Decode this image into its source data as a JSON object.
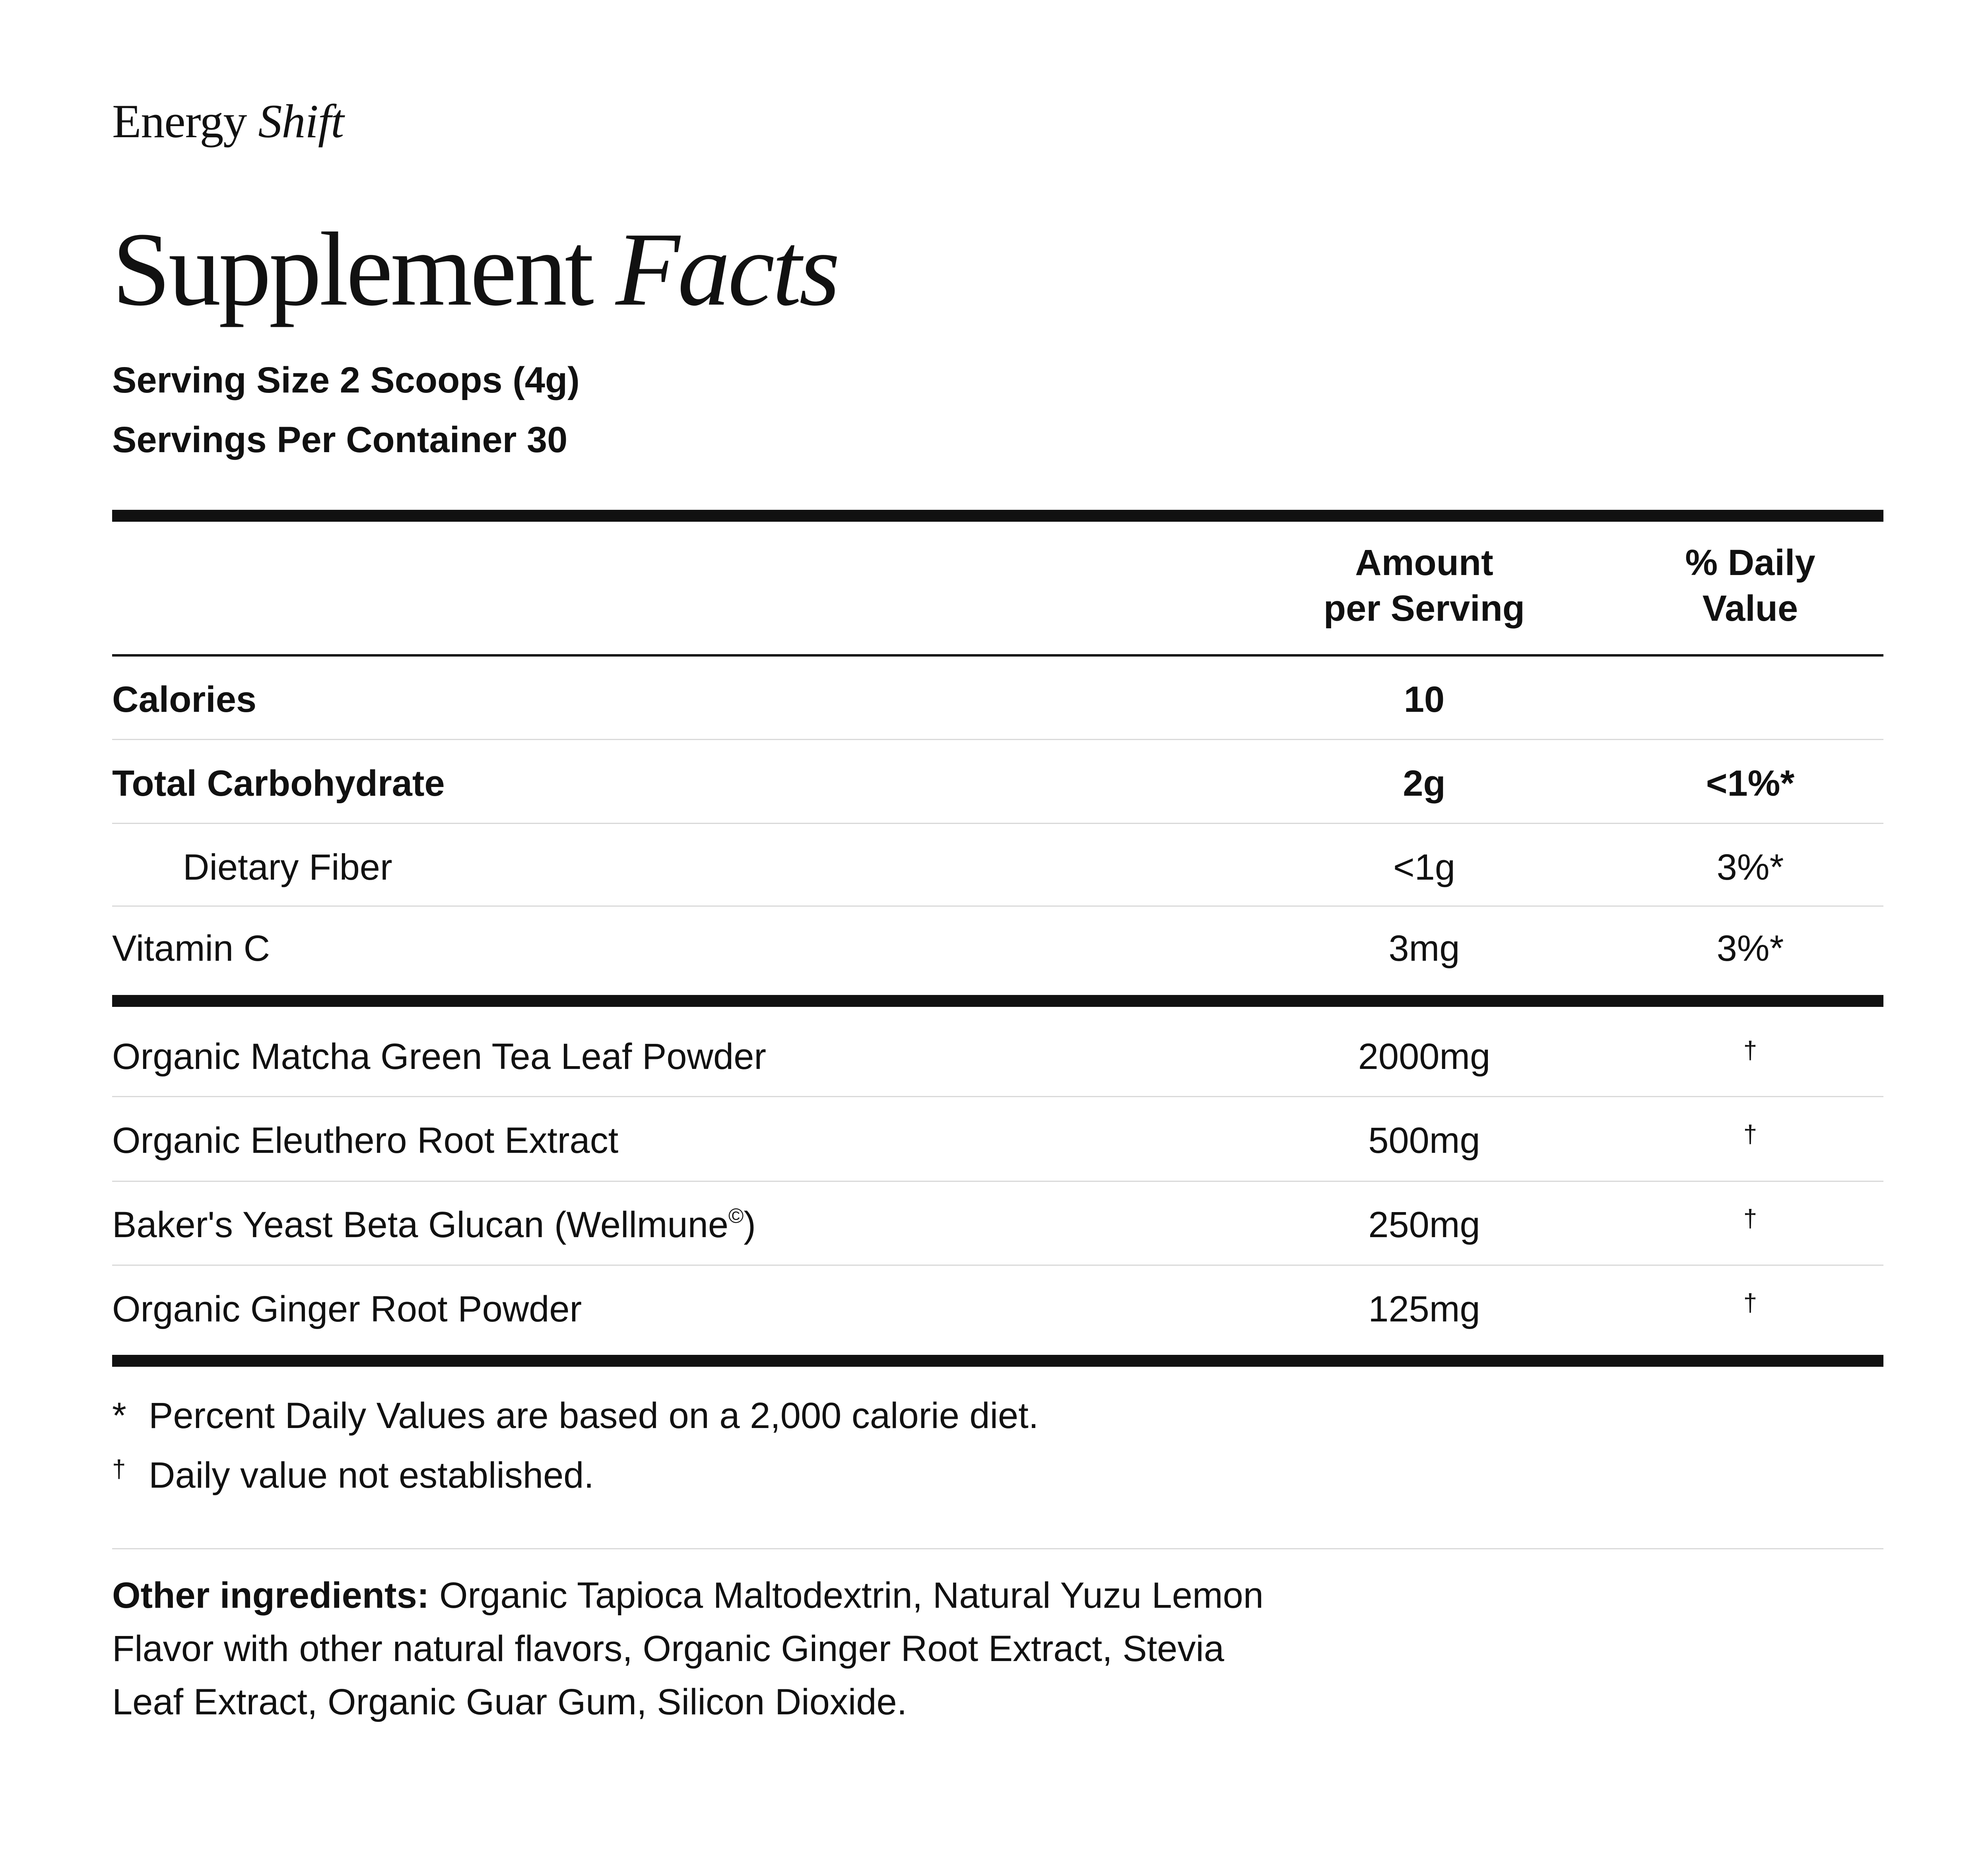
{
  "brand": {
    "name": "Energy",
    "variant": "Shift"
  },
  "title": {
    "main": "Supplement",
    "emphasis": "Facts"
  },
  "serving": {
    "size": "Serving Size 2 Scoops (4g)",
    "per_container": "Servings Per Container 30"
  },
  "columns": {
    "amount_line1": "Amount",
    "amount_line2": "per Serving",
    "dv_line1": "% Daily",
    "dv_line2": "Value"
  },
  "nutrients": [
    {
      "name": "Calories",
      "amount": "10",
      "dv": ""
    },
    {
      "name": "Total Carbohydrate",
      "amount": "2g",
      "dv": "<1%*"
    },
    {
      "name": "Dietary Fiber",
      "amount": "<1g",
      "dv": "3%*"
    },
    {
      "name": "Vitamin C",
      "amount": "3mg",
      "dv": "3%*"
    }
  ],
  "ingredients": [
    {
      "name": "Organic Matcha Green Tea Leaf Powder",
      "amount": "2000mg",
      "dv": "†"
    },
    {
      "name": "Organic Eleuthero Root Extract",
      "amount": "500mg",
      "dv": "†"
    },
    {
      "name": "Baker's Yeast Beta Glucan (Wellmune",
      "mark": "©",
      "name_end": ")",
      "amount": "250mg",
      "dv": "†"
    },
    {
      "name": "Organic Ginger Root Powder",
      "amount": "125mg",
      "dv": "†"
    }
  ],
  "footnotes": [
    {
      "mark": "*",
      "text": "Percent Daily Values are based on a 2,000 calorie diet."
    },
    {
      "mark": "†",
      "text": "Daily value not established."
    }
  ],
  "other_ingredients": {
    "label": "Other ingredients:",
    "text": "Organic Tapioca Maltodextrin, Natural Yuzu Lemon Flavor with other natural flavors, Organic Ginger Root Extract, Stevia Leaf Extract, Organic Guar Gum, Silicon Dioxide."
  }
}
